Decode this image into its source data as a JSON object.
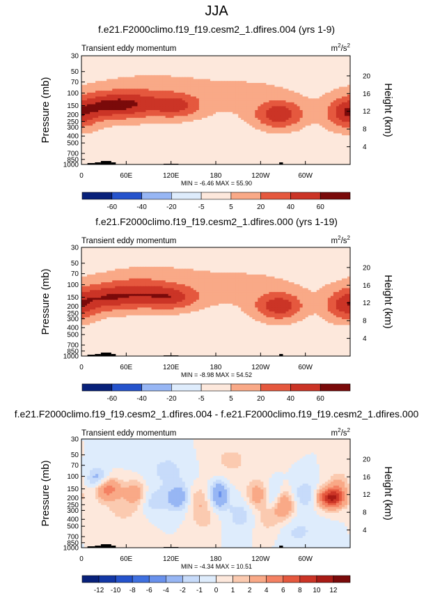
{
  "figure_title": "JJA",
  "chart_data": [
    {
      "type": "contour",
      "title": "f.e21.F2000climo.f19_f19.cesm2_1.dfires.004 (yrs 1-9)",
      "subtitle_left": "Transient eddy momentum",
      "units_base": "m",
      "units_exp1": "2",
      "units_mid": "/s",
      "units_exp2": "2",
      "ylabel": "Pressure (mb)",
      "ylabel_right": "Height (km)",
      "x_ticks": [
        "0",
        "60E",
        "120E",
        "180",
        "120W",
        "60W"
      ],
      "x_tick_lon": [
        0,
        60,
        120,
        180,
        240,
        300
      ],
      "y_ticks": [
        "30",
        "50",
        "70",
        "100",
        "150",
        "200",
        "250",
        "300",
        "400",
        "500",
        "700",
        "850",
        "1000"
      ],
      "y_tick_p": [
        30,
        50,
        70,
        100,
        150,
        200,
        250,
        300,
        400,
        500,
        700,
        850,
        1000
      ],
      "y_right_ticks": [
        "20",
        "16",
        "12",
        "8",
        "4"
      ],
      "y_right_km": [
        20,
        16,
        12,
        8,
        4
      ],
      "stats": "MIN = -6.46   MAX = 55.90",
      "min": -6.46,
      "max": 55.9,
      "levels": [
        -60,
        -40,
        -20,
        -5,
        5,
        20,
        40,
        60
      ],
      "colorbar_labels": [
        "-60",
        "-40",
        "-20",
        "-5",
        "5",
        "20",
        "40",
        "60"
      ],
      "features": [
        {
          "lon": 35,
          "p": 150,
          "value": 55,
          "sx": 28,
          "sy": 0.28
        },
        {
          "lon": 75,
          "p": 140,
          "value": 30,
          "sx": 25,
          "sy": 0.3
        },
        {
          "lon": 125,
          "p": 150,
          "value": 45,
          "sx": 22,
          "sy": 0.25
        },
        {
          "lon": 100,
          "p": 100,
          "value": 9,
          "sx": 70,
          "sy": 0.5
        },
        {
          "lon": 265,
          "p": 200,
          "value": 55,
          "sx": 20,
          "sy": 0.28
        },
        {
          "lon": 355,
          "p": 200,
          "value": 48,
          "sx": 18,
          "sy": 0.3
        },
        {
          "lon": 240,
          "p": 120,
          "value": 6,
          "sx": 50,
          "sy": 0.55
        },
        {
          "lon": 175,
          "p": 500,
          "value": -3,
          "sx": 40,
          "sy": 0.4
        }
      ]
    },
    {
      "type": "contour",
      "title": "f.e21.F2000climo.f19_f19.cesm2_1.dfires.000 (yrs 1-19)",
      "subtitle_left": "Transient eddy momentum",
      "units_base": "m",
      "units_exp1": "2",
      "units_mid": "/s",
      "units_exp2": "2",
      "ylabel": "Pressure (mb)",
      "ylabel_right": "Height (km)",
      "x_ticks": [
        "0",
        "60E",
        "120E",
        "180",
        "120W",
        "60W"
      ],
      "x_tick_lon": [
        0,
        60,
        120,
        180,
        240,
        300
      ],
      "y_ticks": [
        "30",
        "50",
        "70",
        "100",
        "150",
        "200",
        "250",
        "300",
        "400",
        "500",
        "700",
        "850",
        "1000"
      ],
      "y_tick_p": [
        30,
        50,
        70,
        100,
        150,
        200,
        250,
        300,
        400,
        500,
        700,
        850,
        1000
      ],
      "y_right_ticks": [
        "20",
        "16",
        "12",
        "8",
        "4"
      ],
      "y_right_km": [
        20,
        16,
        12,
        8,
        4
      ],
      "stats": "MIN = -8.98   MAX = 54.52",
      "min": -8.98,
      "max": 54.52,
      "levels": [
        -60,
        -40,
        -20,
        -5,
        5,
        20,
        40,
        60
      ],
      "colorbar_labels": [
        "-60",
        "-40",
        "-20",
        "-5",
        "5",
        "20",
        "40",
        "60"
      ],
      "features": [
        {
          "lon": 35,
          "p": 150,
          "value": 50,
          "sx": 28,
          "sy": 0.28
        },
        {
          "lon": 80,
          "p": 130,
          "value": 30,
          "sx": 25,
          "sy": 0.3
        },
        {
          "lon": 120,
          "p": 150,
          "value": 45,
          "sx": 24,
          "sy": 0.25
        },
        {
          "lon": 100,
          "p": 100,
          "value": 9,
          "sx": 70,
          "sy": 0.5
        },
        {
          "lon": 265,
          "p": 200,
          "value": 52,
          "sx": 20,
          "sy": 0.28
        },
        {
          "lon": 355,
          "p": 200,
          "value": 46,
          "sx": 18,
          "sy": 0.3
        },
        {
          "lon": 240,
          "p": 120,
          "value": 6,
          "sx": 50,
          "sy": 0.55
        },
        {
          "lon": 175,
          "p": 500,
          "value": -3,
          "sx": 40,
          "sy": 0.4
        }
      ]
    },
    {
      "type": "contour",
      "title": "f.e21.F2000climo.f19_f19.cesm2_1.dfires.004 - f.e21.F2000climo.f19_f19.cesm2_1.dfires.000",
      "subtitle_left": "Transient eddy momentum",
      "units_base": "m",
      "units_exp1": "2",
      "units_mid": "/s",
      "units_exp2": "2",
      "ylabel": "Pressure (mb)",
      "ylabel_right": "Height (km)",
      "x_ticks": [
        "0",
        "60E",
        "120E",
        "180",
        "120W",
        "60W"
      ],
      "x_tick_lon": [
        0,
        60,
        120,
        180,
        240,
        300
      ],
      "y_ticks": [
        "30",
        "50",
        "70",
        "100",
        "150",
        "200",
        "250",
        "300",
        "400",
        "500",
        "700",
        "850",
        "1000"
      ],
      "y_tick_p": [
        30,
        50,
        70,
        100,
        150,
        200,
        250,
        300,
        400,
        500,
        700,
        850,
        1000
      ],
      "y_right_ticks": [
        "20",
        "16",
        "12",
        "8",
        "4"
      ],
      "y_right_km": [
        20,
        16,
        12,
        8,
        4
      ],
      "stats": "MIN = -4.34   MAX = 10.51",
      "min": -4.34,
      "max": 10.51,
      "levels": [
        -12,
        -10,
        -8,
        -6,
        -4,
        -2,
        -1,
        0,
        1,
        2,
        4,
        6,
        8,
        10,
        12
      ],
      "colorbar_labels": [
        "-12",
        "-10",
        "-8",
        "-6",
        "-4",
        "-2",
        "-1",
        "0",
        "1",
        "2",
        "4",
        "6",
        "8",
        "10",
        "12"
      ],
      "features": [
        {
          "lon": 335,
          "p": 200,
          "value": 10.5,
          "sx": 12,
          "sy": 0.22
        },
        {
          "lon": 35,
          "p": 150,
          "value": 5,
          "sx": 12,
          "sy": 0.25
        },
        {
          "lon": 22,
          "p": 110,
          "value": -3,
          "sx": 10,
          "sy": 0.25
        },
        {
          "lon": 72,
          "p": 170,
          "value": 3,
          "sx": 10,
          "sy": 0.3
        },
        {
          "lon": 130,
          "p": 200,
          "value": -3,
          "sx": 12,
          "sy": 0.3
        },
        {
          "lon": 185,
          "p": 180,
          "value": -4.3,
          "sx": 8,
          "sy": 0.3
        },
        {
          "lon": 155,
          "p": 220,
          "value": 2,
          "sx": 10,
          "sy": 0.35
        },
        {
          "lon": 235,
          "p": 180,
          "value": 3,
          "sx": 10,
          "sy": 0.3
        },
        {
          "lon": 258,
          "p": 200,
          "value": -2.5,
          "sx": 8,
          "sy": 0.3
        },
        {
          "lon": 270,
          "p": 250,
          "value": 4,
          "sx": 10,
          "sy": 0.3
        },
        {
          "lon": 300,
          "p": 180,
          "value": -2,
          "sx": 12,
          "sy": 0.3
        },
        {
          "lon": 95,
          "p": 230,
          "value": -1.5,
          "sx": 14,
          "sy": 0.3
        },
        {
          "lon": 215,
          "p": 350,
          "value": -1.5,
          "sx": 15,
          "sy": 0.4
        },
        {
          "lon": 250,
          "p": 400,
          "value": 1.5,
          "sx": 15,
          "sy": 0.4
        },
        {
          "lon": 55,
          "p": 300,
          "value": 1.2,
          "sx": 20,
          "sy": 0.4
        },
        {
          "lon": 115,
          "p": 80,
          "value": -1.2,
          "sx": 25,
          "sy": 0.45
        },
        {
          "lon": 200,
          "p": 60,
          "value": 1.2,
          "sx": 25,
          "sy": 0.45
        },
        {
          "lon": 290,
          "p": 600,
          "value": -1.2,
          "sx": 20,
          "sy": 0.35
        },
        {
          "lon": 345,
          "p": 130,
          "value": 2,
          "sx": 10,
          "sy": 0.3
        },
        {
          "lon": 165,
          "p": 400,
          "value": 1.2,
          "sx": 12,
          "sy": 0.35
        }
      ]
    }
  ]
}
